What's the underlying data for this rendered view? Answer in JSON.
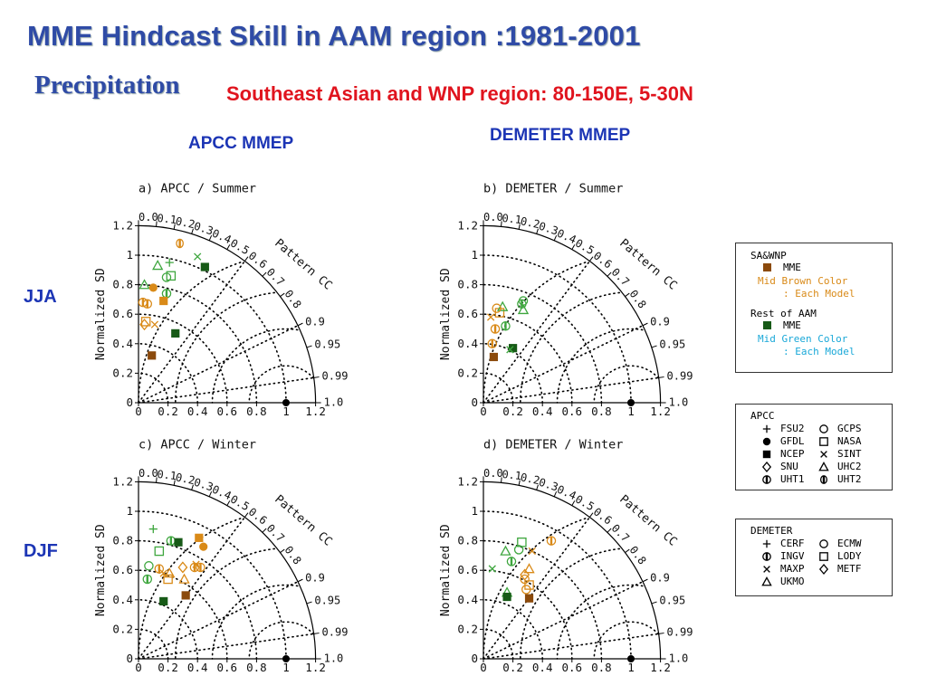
{
  "slide": {
    "title": "MME Hindcast Skill in AAM region :1981-2001",
    "subtitle": "Precipitation",
    "region": "Southeast Asian and WNP region: 80-150E, 5-30N",
    "col_apcc": "APCC MMEP",
    "col_demeter": "DEMETER MMEP",
    "row_jja": "JJA",
    "row_djf": "DJF"
  },
  "colors": {
    "title": "#2f4ba6",
    "region": "#e0141e",
    "heading": "#1c35b5",
    "brown": "#8b4a0c",
    "midbrown": "#d98a18",
    "darkgreen": "#175a17",
    "midgreen": "#3ea63e",
    "legend_cyan": "#1aa8d8"
  },
  "legends": {
    "group": {
      "title": "SA&WNP",
      "mme1": "MME",
      "brown_label": "Mid Brown Color",
      "brown_sub": ": Each Model",
      "rest": "Rest of AAM",
      "mme2": "MME",
      "green_label": "Mid Green Color",
      "green_sub": ": Each Model"
    },
    "apcc": {
      "title": "APCC",
      "items": [
        {
          "sym": "plus",
          "label": "FSU2"
        },
        {
          "sym": "circle",
          "label": "GCPS"
        },
        {
          "sym": "dot",
          "label": "GFDL"
        },
        {
          "sym": "square",
          "label": "NASA"
        },
        {
          "sym": "fsquare",
          "label": "NCEP"
        },
        {
          "sym": "x",
          "label": "SINT"
        },
        {
          "sym": "diamond",
          "label": "SNU"
        },
        {
          "sym": "triangle",
          "label": "UHC2"
        },
        {
          "sym": "circbar",
          "label": "UHT1"
        },
        {
          "sym": "ellbar",
          "label": "UHT2"
        }
      ]
    },
    "demeter": {
      "title": "DEMETER",
      "items": [
        {
          "sym": "plus",
          "label": "CERF"
        },
        {
          "sym": "circle",
          "label": "ECMW"
        },
        {
          "sym": "circbar",
          "label": "INGV"
        },
        {
          "sym": "square",
          "label": "LODY"
        },
        {
          "sym": "x",
          "label": "MAXP"
        },
        {
          "sym": "diamond",
          "label": "METF"
        },
        {
          "sym": "triangle",
          "label": "UKMO"
        }
      ]
    }
  },
  "chart_data": [
    {
      "type": "scatter",
      "subtype": "taylor-diagram",
      "title": "a) APCC / Summer",
      "ylabel": "Normalized SD",
      "arclabel": "Pattern CC",
      "xticks": [
        "0",
        "0.2",
        "0.4",
        "0.6",
        "0.8",
        "1",
        "1.2"
      ],
      "yticks": [
        "0",
        "0.2",
        "0.4",
        "0.6",
        "0.8",
        "1",
        "1.2"
      ],
      "ccticks": [
        "0.0",
        "0.1",
        "0.2",
        "0.3",
        "0.4",
        "0.5",
        "0.6",
        "0.7",
        "0.8",
        "0.9",
        "0.95",
        "0.99",
        "1.0"
      ],
      "points": [
        {
          "sym": "fsquare",
          "color": "brown",
          "x": 0.09,
          "y": 0.32
        },
        {
          "sym": "fsquare",
          "color": "darkgreen",
          "x": 0.25,
          "y": 0.47
        },
        {
          "sym": "fsquare",
          "color": "darkgreen",
          "x": 0.45,
          "y": 0.92
        },
        {
          "sym": "ellbar",
          "color": "midbrown",
          "x": 0.28,
          "y": 1.08
        },
        {
          "sym": "x",
          "color": "midgreen",
          "x": 0.4,
          "y": 0.99
        },
        {
          "sym": "plus",
          "color": "midgreen",
          "x": 0.21,
          "y": 0.95
        },
        {
          "sym": "triangle",
          "color": "midgreen",
          "x": 0.13,
          "y": 0.93
        },
        {
          "sym": "square",
          "color": "midgreen",
          "x": 0.22,
          "y": 0.86
        },
        {
          "sym": "circle",
          "color": "midgreen",
          "x": 0.19,
          "y": 0.85
        },
        {
          "sym": "triangle",
          "color": "midgreen",
          "x": 0.04,
          "y": 0.8
        },
        {
          "sym": "dot",
          "color": "midbrown",
          "x": 0.1,
          "y": 0.78
        },
        {
          "sym": "circbar",
          "color": "midgreen",
          "x": 0.19,
          "y": 0.74
        },
        {
          "sym": "fsquare",
          "color": "midbrown",
          "x": 0.17,
          "y": 0.69
        },
        {
          "sym": "circbar",
          "color": "midbrown",
          "x": 0.03,
          "y": 0.68
        },
        {
          "sym": "circbar",
          "color": "midbrown",
          "x": 0.06,
          "y": 0.67
        },
        {
          "sym": "square",
          "color": "midbrown",
          "x": 0.05,
          "y": 0.55
        },
        {
          "sym": "x",
          "color": "midbrown",
          "x": 0.11,
          "y": 0.53
        },
        {
          "sym": "diamond",
          "color": "midbrown",
          "x": 0.04,
          "y": 0.53
        }
      ]
    },
    {
      "type": "scatter",
      "subtype": "taylor-diagram",
      "title": "b) DEMETER / Summer",
      "ylabel": "Normalized SD",
      "arclabel": "Pattern CC",
      "xticks": [
        "0",
        "0.2",
        "0.4",
        "0.6",
        "0.8",
        "1",
        "1.2"
      ],
      "yticks": [
        "0",
        "0.2",
        "0.4",
        "0.6",
        "0.8",
        "1",
        "1.2"
      ],
      "ccticks": [
        "0.0",
        "0.1",
        "0.2",
        "0.3",
        "0.4",
        "0.5",
        "0.6",
        "0.7",
        "0.8",
        "0.9",
        "0.95",
        "0.99",
        "1.0"
      ],
      "points": [
        {
          "sym": "fsquare",
          "color": "brown",
          "x": 0.07,
          "y": 0.31
        },
        {
          "sym": "fsquare",
          "color": "darkgreen",
          "x": 0.2,
          "y": 0.37
        },
        {
          "sym": "x",
          "color": "midgreen",
          "x": 0.18,
          "y": 0.36
        },
        {
          "sym": "circbar",
          "color": "midbrown",
          "x": 0.06,
          "y": 0.4
        },
        {
          "sym": "circbar",
          "color": "midbrown",
          "x": 0.08,
          "y": 0.5
        },
        {
          "sym": "circbar",
          "color": "midgreen",
          "x": 0.15,
          "y": 0.52
        },
        {
          "sym": "x",
          "color": "midbrown",
          "x": 0.05,
          "y": 0.58
        },
        {
          "sym": "square",
          "color": "midbrown",
          "x": 0.11,
          "y": 0.61
        },
        {
          "sym": "triangle",
          "color": "midgreen",
          "x": 0.13,
          "y": 0.65
        },
        {
          "sym": "circle",
          "color": "midbrown",
          "x": 0.09,
          "y": 0.64
        },
        {
          "sym": "circle",
          "color": "midgreen",
          "x": 0.27,
          "y": 0.69
        },
        {
          "sym": "circbar",
          "color": "midgreen",
          "x": 0.26,
          "y": 0.67
        },
        {
          "sym": "triangle",
          "color": "midgreen",
          "x": 0.27,
          "y": 0.63
        }
      ]
    },
    {
      "type": "scatter",
      "subtype": "taylor-diagram",
      "title": "c) APCC / Winter",
      "ylabel": "Normalized SD",
      "arclabel": "Pattern CC",
      "xticks": [
        "0",
        "0.2",
        "0.4",
        "0.6",
        "0.8",
        "1",
        "1.2"
      ],
      "yticks": [
        "0",
        "0.2",
        "0.4",
        "0.6",
        "0.8",
        "1",
        "1.2"
      ],
      "ccticks": [
        "0.0",
        "0.1",
        "0.2",
        "0.3",
        "0.4",
        "0.5",
        "0.6",
        "0.7",
        "0.8",
        "0.9",
        "0.95",
        "0.99",
        "1.0"
      ],
      "points": [
        {
          "sym": "plus",
          "color": "midgreen",
          "x": 0.1,
          "y": 0.88
        },
        {
          "sym": "fsquare",
          "color": "midbrown",
          "x": 0.41,
          "y": 0.82
        },
        {
          "sym": "square",
          "color": "midgreen",
          "x": 0.14,
          "y": 0.73
        },
        {
          "sym": "circle",
          "color": "midgreen",
          "x": 0.07,
          "y": 0.63
        },
        {
          "sym": "circbar",
          "color": "midgreen",
          "x": 0.22,
          "y": 0.8
        },
        {
          "sym": "fsquare",
          "color": "darkgreen",
          "x": 0.27,
          "y": 0.79
        },
        {
          "sym": "dot",
          "color": "midbrown",
          "x": 0.44,
          "y": 0.76
        },
        {
          "sym": "x",
          "color": "midbrown",
          "x": 0.39,
          "y": 0.64
        },
        {
          "sym": "circbar",
          "color": "midbrown",
          "x": 0.38,
          "y": 0.62
        },
        {
          "sym": "circbar",
          "color": "midbrown",
          "x": 0.42,
          "y": 0.62
        },
        {
          "sym": "diamond",
          "color": "midbrown",
          "x": 0.3,
          "y": 0.62
        },
        {
          "sym": "circbar",
          "color": "midbrown",
          "x": 0.14,
          "y": 0.61
        },
        {
          "sym": "triangle",
          "color": "midbrown",
          "x": 0.21,
          "y": 0.58
        },
        {
          "sym": "x",
          "color": "midbrown",
          "x": 0.17,
          "y": 0.58
        },
        {
          "sym": "square",
          "color": "midbrown",
          "x": 0.2,
          "y": 0.54
        },
        {
          "sym": "triangle",
          "color": "midbrown",
          "x": 0.31,
          "y": 0.54
        },
        {
          "sym": "circbar",
          "color": "midgreen",
          "x": 0.06,
          "y": 0.54
        },
        {
          "sym": "fsquare",
          "color": "brown",
          "x": 0.32,
          "y": 0.43
        },
        {
          "sym": "fsquare",
          "color": "darkgreen",
          "x": 0.17,
          "y": 0.39
        }
      ]
    },
    {
      "type": "scatter",
      "subtype": "taylor-diagram",
      "title": "d) DEMETER / Winter",
      "ylabel": "Normalized SD",
      "arclabel": "Pattern CC",
      "xticks": [
        "0",
        "0.2",
        "0.4",
        "0.6",
        "0.8",
        "1",
        "1.2"
      ],
      "yticks": [
        "0",
        "0.2",
        "0.4",
        "0.6",
        "0.8",
        "1",
        "1.2"
      ],
      "ccticks": [
        "0.0",
        "0.1",
        "0.2",
        "0.3",
        "0.4",
        "0.5",
        "0.6",
        "0.7",
        "0.8",
        "0.9",
        "0.95",
        "0.99",
        "1.0"
      ],
      "points": [
        {
          "sym": "circbar",
          "color": "midbrown",
          "x": 0.46,
          "y": 0.8
        },
        {
          "sym": "square",
          "color": "midgreen",
          "x": 0.26,
          "y": 0.79
        },
        {
          "sym": "circle",
          "color": "midgreen",
          "x": 0.24,
          "y": 0.74
        },
        {
          "sym": "triangle",
          "color": "midgreen",
          "x": 0.15,
          "y": 0.73
        },
        {
          "sym": "x",
          "color": "midbrown",
          "x": 0.33,
          "y": 0.73
        },
        {
          "sym": "circbar",
          "color": "midgreen",
          "x": 0.19,
          "y": 0.66
        },
        {
          "sym": "x",
          "color": "midgreen",
          "x": 0.06,
          "y": 0.61
        },
        {
          "sym": "triangle",
          "color": "midbrown",
          "x": 0.31,
          "y": 0.61
        },
        {
          "sym": "diamond",
          "color": "midbrown",
          "x": 0.28,
          "y": 0.57
        },
        {
          "sym": "circle",
          "color": "midbrown",
          "x": 0.28,
          "y": 0.54
        },
        {
          "sym": "square",
          "color": "midbrown",
          "x": 0.31,
          "y": 0.5
        },
        {
          "sym": "triangle",
          "color": "midgreen",
          "x": 0.16,
          "y": 0.45
        },
        {
          "sym": "circle",
          "color": "midbrown",
          "x": 0.29,
          "y": 0.47
        },
        {
          "sym": "fsquare",
          "color": "darkgreen",
          "x": 0.16,
          "y": 0.42
        },
        {
          "sym": "fsquare",
          "color": "brown",
          "x": 0.31,
          "y": 0.41
        }
      ]
    }
  ]
}
